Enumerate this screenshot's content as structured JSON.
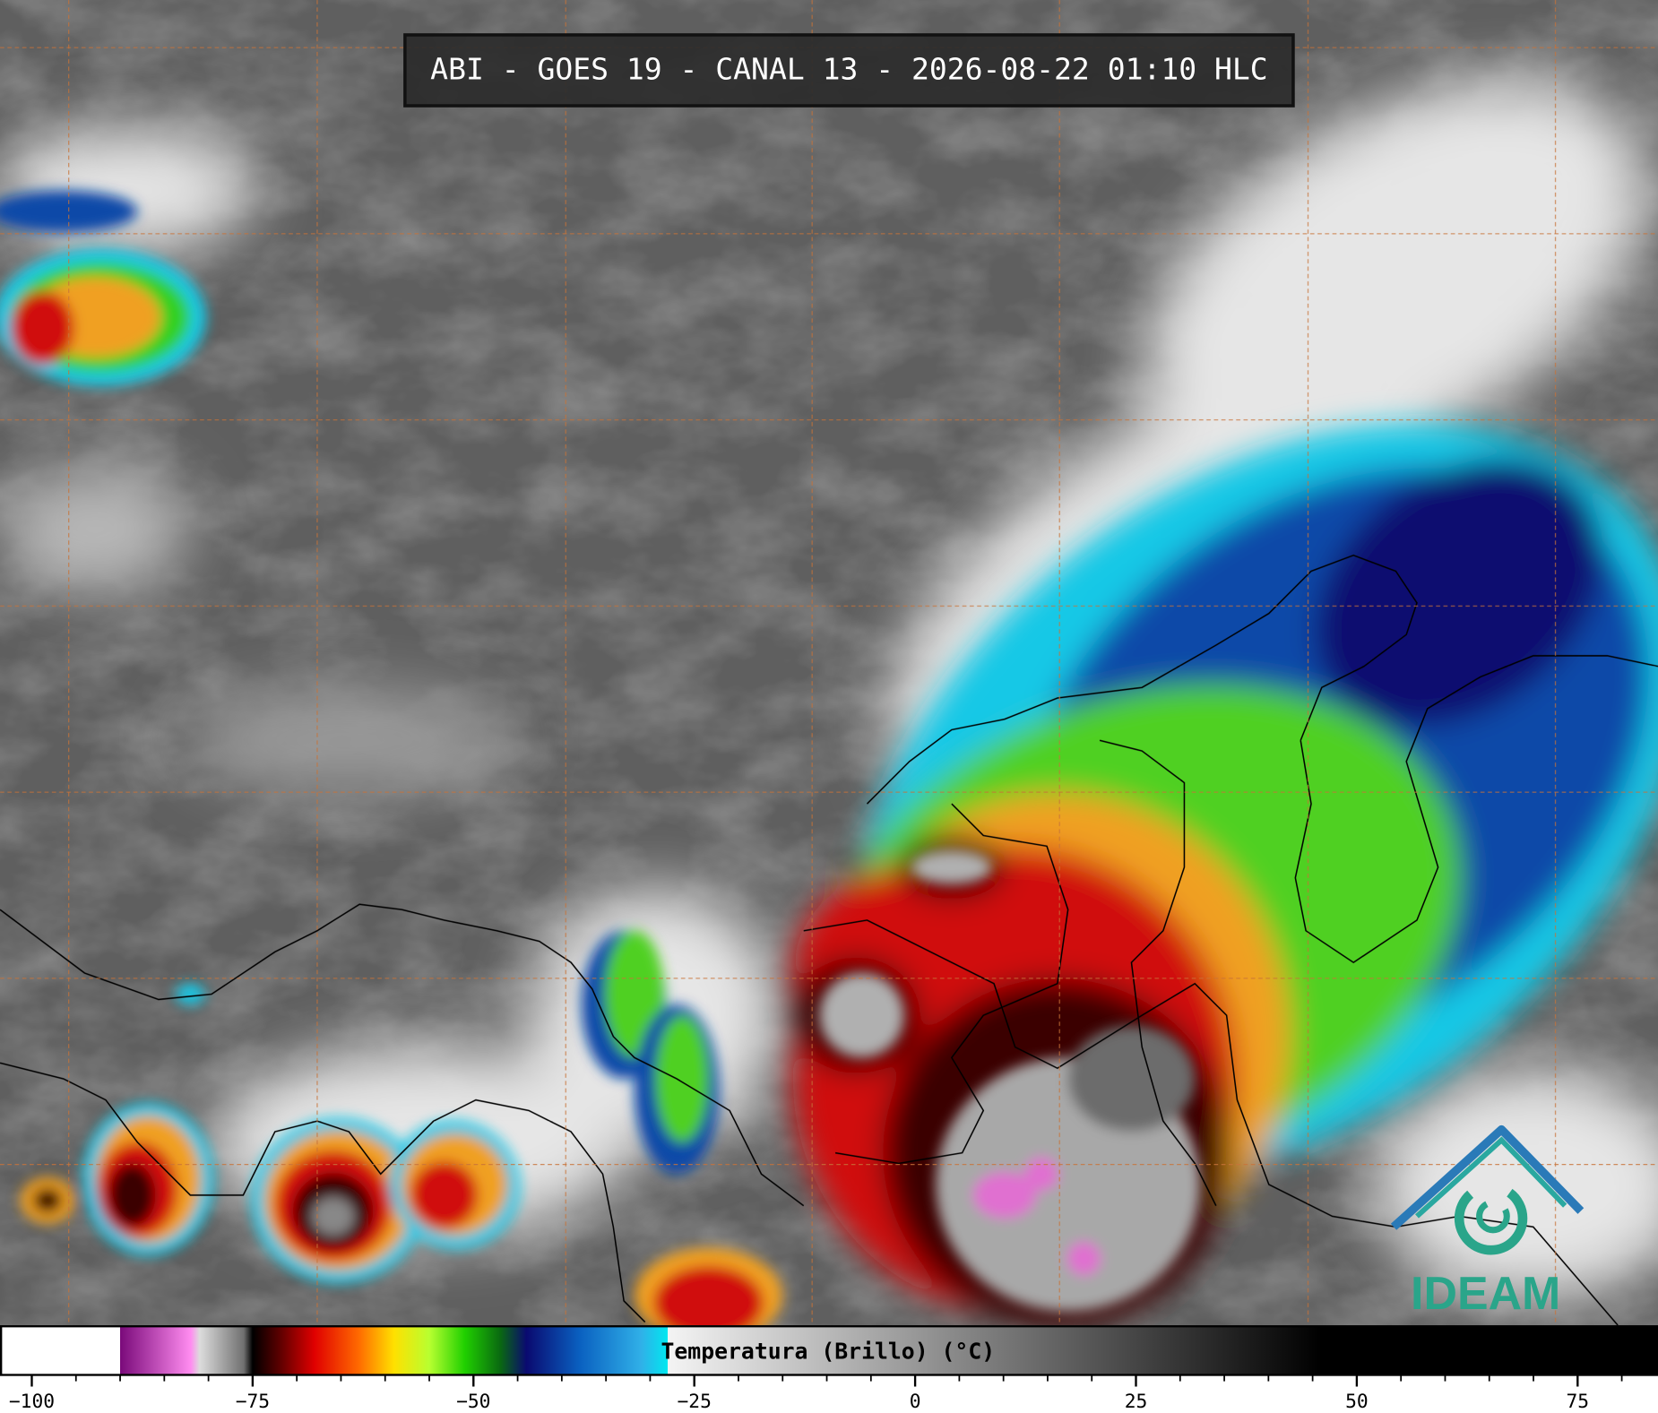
{
  "header": {
    "title": "ABI - GOES 19 - CANAL 13 - 2026-08-22 01:10 HLC"
  },
  "colorbar": {
    "label": "Temperatura (Brillo) (°C)",
    "xlim": [
      -103.6,
      84.1
    ],
    "xticks": [
      {
        "value": -100,
        "label": "−100"
      },
      {
        "value": -75,
        "label": "−75"
      },
      {
        "value": -50,
        "label": "−50"
      },
      {
        "value": -25,
        "label": "−25"
      },
      0,
      25,
      50,
      75
    ],
    "minor_tick_interval": 5,
    "stops": [
      {
        "value": -103.6,
        "color": "#ffffff"
      },
      {
        "value": -90,
        "color": "#ffffff"
      },
      {
        "value": -90,
        "color": "#7a0a7a"
      },
      {
        "value": -82,
        "color": "#ff8cf0"
      },
      {
        "value": -81,
        "color": "#dcdcdc"
      },
      {
        "value": -76,
        "color": "#707070"
      },
      {
        "value": -75,
        "color": "#000000"
      },
      {
        "value": -72,
        "color": "#5a0000"
      },
      {
        "value": -68,
        "color": "#e00000"
      },
      {
        "value": -63,
        "color": "#ff6a00"
      },
      {
        "value": -59,
        "color": "#ffe000"
      },
      {
        "value": -55,
        "color": "#b8ff30"
      },
      {
        "value": -51,
        "color": "#20d000"
      },
      {
        "value": -47,
        "color": "#0a6a10"
      },
      {
        "value": -44,
        "color": "#0a0a70"
      },
      {
        "value": -38,
        "color": "#0a60c0"
      },
      {
        "value": -31,
        "color": "#30b0e8"
      },
      {
        "value": -28,
        "color": "#00e8f0"
      },
      {
        "value": -28,
        "color": "#f4f4f4"
      },
      {
        "value": 46,
        "color": "#000000"
      },
      {
        "value": 84.1,
        "color": "#000000"
      }
    ]
  },
  "logo": {
    "text": "IDEAM"
  }
}
